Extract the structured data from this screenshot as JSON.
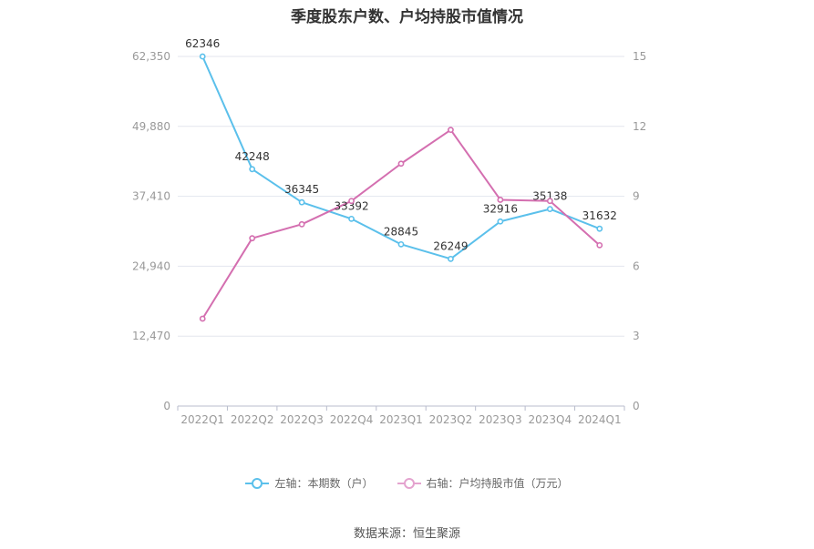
{
  "title": "季度股东户数、户均持股市值情况",
  "source": "数据来源：恒生聚源",
  "colors": {
    "left": "#5bc0eb",
    "right": "#d46fb0",
    "grid": "#e3e6ee",
    "axis": "#b8bccc"
  },
  "legend": {
    "left_label": "左轴：本期数（户）",
    "right_label": "右轴：户均持股市值（万元）"
  },
  "chart_data": {
    "type": "line",
    "title": "季度股东户数、户均持股市值情况",
    "categories": [
      "2022Q1",
      "2022Q2",
      "2022Q3",
      "2022Q4",
      "2023Q1",
      "2023Q2",
      "2023Q3",
      "2023Q4",
      "2024Q1"
    ],
    "left_axis": {
      "min": 0,
      "max": 62350,
      "ticks": [
        0,
        12470,
        24940,
        37410,
        49880,
        62350
      ],
      "tick_labels": [
        "0",
        "12,470",
        "24,940",
        "37,410",
        "49,880",
        "62,350"
      ]
    },
    "right_axis": {
      "min": 0,
      "max": 15,
      "ticks": [
        0,
        3,
        6,
        9,
        12,
        15
      ],
      "tick_labels": [
        "0",
        "3",
        "6",
        "9",
        "12",
        "15"
      ]
    },
    "grid": true,
    "legend_position": "bottom-center",
    "series": [
      {
        "name": "左轴：本期数（户）",
        "axis": "left",
        "values": [
          62346,
          42248,
          36345,
          33392,
          28845,
          26249,
          32916,
          35138,
          31632
        ],
        "labels": [
          "62346",
          "42248",
          "36345",
          "33392",
          "28845",
          "26249",
          "32916",
          "35138",
          "31632"
        ]
      },
      {
        "name": "右轴：户均持股市值（万元）",
        "axis": "right",
        "values": [
          3.75,
          7.2,
          7.8,
          8.8,
          10.4,
          11.85,
          8.85,
          8.8,
          6.9
        ]
      }
    ]
  }
}
